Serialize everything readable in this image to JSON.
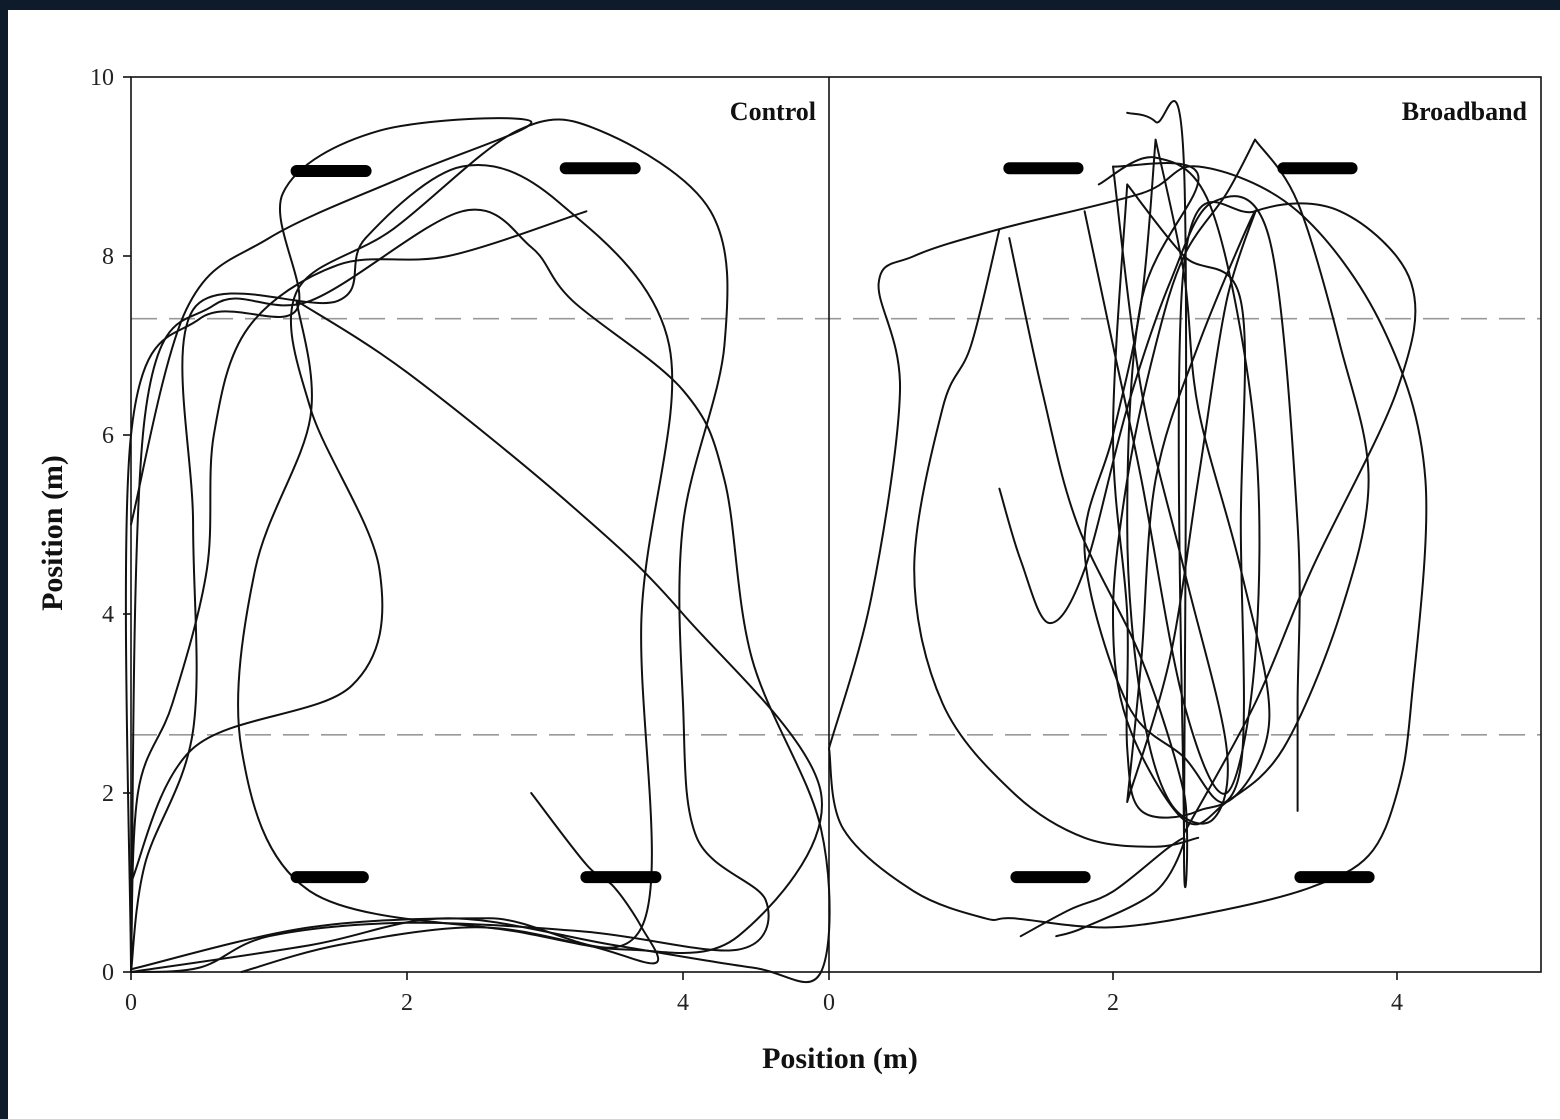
{
  "chart_data": {
    "type": "line",
    "xlabel": "Position (m)",
    "ylabel": "Position (m)",
    "ylim": [
      0,
      10
    ],
    "yticks": [
      0,
      2,
      4,
      6,
      8,
      10
    ],
    "grid": false,
    "dashed_lines_y": [
      2.65,
      7.3
    ],
    "panels": [
      {
        "title": "Control",
        "xlim": [
          0,
          5.1
        ],
        "xticks": [
          0,
          2,
          4
        ],
        "markers": [
          {
            "x": [
              1.2,
              1.7
            ],
            "y": 8.95
          },
          {
            "x": [
              3.15,
              3.65
            ],
            "y": 8.98
          },
          {
            "x": [
              1.2,
              1.68
            ],
            "y": 1.06
          },
          {
            "x": [
              3.3,
              3.8
            ],
            "y": 1.06
          }
        ],
        "tracks": [
          [
            [
              0.0,
              0.05
            ],
            [
              0.05,
              2.0
            ],
            [
              0.3,
              3.0
            ],
            [
              0.55,
              4.5
            ],
            [
              0.6,
              6.0
            ],
            [
              0.85,
              7.2
            ],
            [
              1.5,
              7.9
            ],
            [
              2.3,
              8.0
            ],
            [
              3.3,
              8.5
            ]
          ],
          [
            [
              0.0,
              1.0
            ],
            [
              0.45,
              2.5
            ],
            [
              1.6,
              3.2
            ],
            [
              1.8,
              4.5
            ],
            [
              1.3,
              6.3
            ],
            [
              1.2,
              7.6
            ],
            [
              1.9,
              8.3
            ],
            [
              2.8,
              9.4
            ],
            [
              3.4,
              9.4
            ],
            [
              4.2,
              8.5
            ],
            [
              4.3,
              7.0
            ],
            [
              4.0,
              5.0
            ],
            [
              4.0,
              3.0
            ],
            [
              4.1,
              1.5
            ],
            [
              4.6,
              0.8
            ],
            [
              4.4,
              0.25
            ],
            [
              3.3,
              0.45
            ],
            [
              2.0,
              0.55
            ],
            [
              1.0,
              0.4
            ],
            [
              0.5,
              0.05
            ],
            [
              0.0,
              0.0
            ]
          ],
          [
            [
              0.0,
              5.0
            ],
            [
              0.4,
              7.4
            ],
            [
              1.0,
              8.2
            ],
            [
              2.0,
              8.9
            ],
            [
              2.9,
              9.5
            ],
            [
              1.8,
              9.4
            ],
            [
              1.1,
              8.7
            ],
            [
              1.2,
              7.4
            ],
            [
              0.5,
              7.3
            ],
            [
              0.0,
              6.0
            ],
            [
              0.0,
              0.0
            ]
          ],
          [
            [
              0.0,
              0.03
            ],
            [
              1.3,
              0.5
            ],
            [
              2.6,
              0.6
            ],
            [
              3.7,
              0.5
            ],
            [
              3.7,
              4.0
            ],
            [
              3.9,
              7.0
            ],
            [
              3.1,
              8.6
            ],
            [
              2.4,
              9.0
            ],
            [
              1.7,
              8.2
            ],
            [
              1.5,
              7.5
            ],
            [
              0.45,
              7.4
            ],
            [
              0.45,
              5.0
            ],
            [
              0.45,
              2.7
            ],
            [
              0.1,
              1.2
            ],
            [
              0.0,
              0.0
            ]
          ],
          [
            [
              1.2,
              7.5
            ],
            [
              2.0,
              6.7
            ],
            [
              3.2,
              5.2
            ],
            [
              4.0,
              4.0
            ],
            [
              5.0,
              2.0
            ],
            [
              4.4,
              0.4
            ],
            [
              3.6,
              0.25
            ],
            [
              2.8,
              0.45
            ],
            [
              1.3,
              0.9
            ],
            [
              0.8,
              2.5
            ],
            [
              0.9,
              4.5
            ],
            [
              1.3,
              6.2
            ],
            [
              1.2,
              7.5
            ]
          ],
          [
            [
              2.9,
              2.0
            ],
            [
              3.3,
              1.2
            ],
            [
              3.5,
              0.95
            ],
            [
              3.7,
              0.5
            ],
            [
              3.8,
              0.1
            ],
            [
              3.3,
              0.3
            ],
            [
              2.5,
              0.5
            ],
            [
              1.5,
              0.3
            ],
            [
              0.8,
              0.0
            ]
          ],
          [
            [
              0.0,
              0.0
            ],
            [
              1.3,
              0.3
            ],
            [
              2.3,
              0.6
            ],
            [
              3.5,
              0.3
            ],
            [
              4.5,
              0.05
            ],
            [
              5.0,
              0.0
            ],
            [
              5.0,
              1.6
            ],
            [
              4.5,
              3.5
            ],
            [
              4.3,
              5.5
            ],
            [
              4.0,
              6.5
            ],
            [
              3.2,
              7.5
            ],
            [
              2.9,
              8.1
            ],
            [
              2.4,
              8.5
            ],
            [
              1.3,
              7.5
            ],
            [
              0.6,
              7.45
            ],
            [
              0.1,
              6.2
            ],
            [
              0.0,
              0.05
            ]
          ]
        ]
      },
      {
        "title": "Broadband",
        "xlim": [
          0,
          5.0
        ],
        "xticks": [
          0,
          2,
          4
        ],
        "markers": [
          {
            "x": [
              1.27,
              1.75
            ],
            "y": 8.98
          },
          {
            "x": [
              3.2,
              3.68
            ],
            "y": 8.98
          },
          {
            "x": [
              1.32,
              1.8
            ],
            "y": 1.06
          },
          {
            "x": [
              3.32,
              3.8
            ],
            "y": 1.06
          }
        ],
        "tracks": [
          [
            [
              0.0,
              2.5
            ],
            [
              0.3,
              4.2
            ],
            [
              0.5,
              6.5
            ],
            [
              0.35,
              7.7
            ],
            [
              0.6,
              8.0
            ],
            [
              1.2,
              8.3
            ],
            [
              2.2,
              8.7
            ],
            [
              2.6,
              9.0
            ],
            [
              3.3,
              8.5
            ],
            [
              3.9,
              7.2
            ],
            [
              4.2,
              5.5
            ],
            [
              4.1,
              3.0
            ],
            [
              4.0,
              2.0
            ],
            [
              3.8,
              1.3
            ],
            [
              3.4,
              0.95
            ],
            [
              2.8,
              0.7
            ],
            [
              2.0,
              0.5
            ],
            [
              1.3,
              0.6
            ],
            [
              1.1,
              0.6
            ],
            [
              0.6,
              0.9
            ],
            [
              0.1,
              1.6
            ],
            [
              0.0,
              2.5
            ]
          ],
          [
            [
              1.2,
              8.3
            ],
            [
              1.0,
              7.0
            ],
            [
              0.8,
              6.3
            ],
            [
              0.6,
              4.5
            ],
            [
              0.8,
              3.0
            ],
            [
              1.3,
              2.0
            ],
            [
              1.8,
              1.5
            ],
            [
              2.3,
              1.4
            ],
            [
              2.6,
              1.5
            ]
          ],
          [
            [
              1.27,
              8.2
            ],
            [
              1.5,
              6.5
            ],
            [
              1.75,
              5.0
            ],
            [
              2.2,
              3.5
            ],
            [
              2.5,
              2.0
            ],
            [
              2.5,
              1.4
            ],
            [
              2.5,
              9.0
            ],
            [
              2.3,
              9.5
            ],
            [
              2.1,
              9.6
            ]
          ],
          [
            [
              1.2,
              5.4
            ],
            [
              1.35,
              4.6
            ],
            [
              1.55,
              3.9
            ],
            [
              1.8,
              4.5
            ],
            [
              2.1,
              6.3
            ],
            [
              2.4,
              7.7
            ],
            [
              2.7,
              8.6
            ],
            [
              3.1,
              8.2
            ],
            [
              3.3,
              5.0
            ],
            [
              3.3,
              3.0
            ],
            [
              3.3,
              1.8
            ]
          ],
          [
            [
              2.1,
              8.8
            ],
            [
              2.0,
              6.0
            ],
            [
              2.1,
              4.0
            ],
            [
              2.1,
              2.5
            ],
            [
              2.2,
              1.8
            ],
            [
              2.6,
              1.8
            ],
            [
              2.9,
              2.3
            ],
            [
              2.9,
              5.0
            ],
            [
              2.9,
              7.5
            ],
            [
              2.5,
              8.0
            ],
            [
              2.1,
              8.8
            ]
          ],
          [
            [
              2.5,
              1.45
            ],
            [
              2.5,
              7.9
            ],
            [
              3.0,
              8.5
            ],
            [
              3.6,
              8.5
            ],
            [
              4.1,
              7.7
            ],
            [
              4.0,
              6.5
            ],
            [
              3.4,
              4.5
            ],
            [
              3.0,
              3.0
            ],
            [
              2.5,
              1.55
            ]
          ],
          [
            [
              1.8,
              8.5
            ],
            [
              2.0,
              7.0
            ],
            [
              2.2,
              5.5
            ],
            [
              2.5,
              3.0
            ],
            [
              2.8,
              2.0
            ],
            [
              3.0,
              3.5
            ],
            [
              3.0,
              6.0
            ],
            [
              2.7,
              8.5
            ],
            [
              2.3,
              9.1
            ],
            [
              1.9,
              8.8
            ]
          ],
          [
            [
              2.3,
              9.3
            ],
            [
              2.2,
              7.5
            ],
            [
              2.0,
              6.0
            ],
            [
              1.8,
              4.7
            ],
            [
              2.1,
              3.0
            ],
            [
              2.5,
              2.4
            ],
            [
              2.8,
              1.9
            ],
            [
              3.1,
              2.8
            ],
            [
              2.9,
              4.5
            ],
            [
              2.6,
              6.3
            ],
            [
              2.5,
              7.8
            ],
            [
              2.3,
              9.3
            ]
          ],
          [
            [
              3.0,
              9.3
            ],
            [
              2.8,
              8.7
            ],
            [
              2.5,
              8.0
            ],
            [
              2.3,
              7.0
            ],
            [
              2.1,
              5.5
            ],
            [
              2.0,
              4.0
            ],
            [
              2.1,
              2.8
            ],
            [
              2.5,
              1.7
            ],
            [
              2.8,
              1.9
            ],
            [
              3.2,
              2.5
            ],
            [
              3.6,
              4.0
            ],
            [
              3.8,
              5.5
            ],
            [
              3.6,
              7.0
            ],
            [
              3.3,
              8.6
            ],
            [
              3.0,
              9.3
            ]
          ],
          [
            [
              2.1,
              1.9
            ],
            [
              2.4,
              3.5
            ],
            [
              2.6,
              5.5
            ],
            [
              2.8,
              7.5
            ],
            [
              3.0,
              8.5
            ],
            [
              2.6,
              7.0
            ],
            [
              2.3,
              5.5
            ],
            [
              2.2,
              3.5
            ],
            [
              2.1,
              1.9
            ]
          ],
          [
            [
              2.0,
              9.0
            ],
            [
              2.2,
              6.5
            ],
            [
              2.5,
              4.5
            ],
            [
              2.8,
              2.5
            ],
            [
              2.7,
              1.7
            ],
            [
              2.4,
              1.9
            ],
            [
              2.2,
              3.0
            ],
            [
              2.1,
              5.0
            ],
            [
              2.2,
              7.5
            ],
            [
              2.6,
              8.9
            ],
            [
              2.0,
              9.0
            ]
          ],
          [
            [
              1.35,
              0.4
            ],
            [
              1.7,
              0.7
            ],
            [
              2.0,
              0.9
            ],
            [
              2.4,
              1.4
            ],
            [
              2.5,
              1.45
            ],
            [
              2.3,
              0.9
            ],
            [
              1.8,
              0.5
            ],
            [
              1.6,
              0.4
            ]
          ]
        ]
      }
    ]
  },
  "colors": {
    "frame_background": "#0d1b2a",
    "plot_background": "#ffffff",
    "track": "#111111",
    "dashed_line": "#999999",
    "marker": "#000000"
  }
}
